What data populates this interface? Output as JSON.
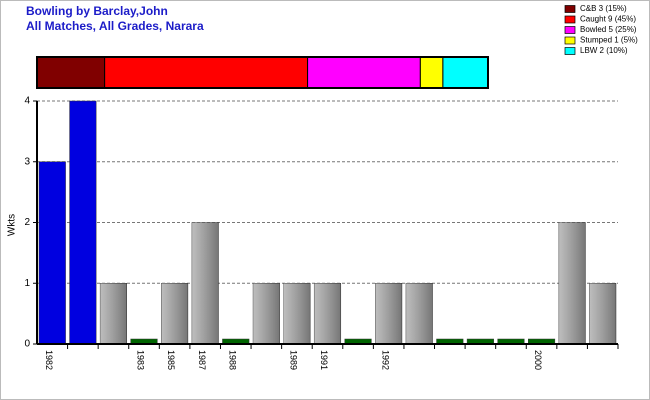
{
  "chart_data": [
    {
      "type": "stacked-hbar",
      "title": "Bowling by Barclay,John",
      "subtitle": "All Matches, All Grades, Narara",
      "series": [
        {
          "name": "C&B 3 (15%)",
          "color": "#800000",
          "values": [
            15
          ]
        },
        {
          "name": "Caught 9 (45%)",
          "color": "#ff0000",
          "values": [
            45
          ]
        },
        {
          "name": "Bowled 5 (25%)",
          "color": "#ff00ff",
          "values": [
            25
          ]
        },
        {
          "name": "Stumped 1 (5%)",
          "color": "#ffff00",
          "values": [
            5
          ]
        },
        {
          "name": "LBW 2 (10%)",
          "color": "#00ffff",
          "values": [
            10
          ]
        }
      ]
    },
    {
      "type": "bar",
      "y_label": "Wkts",
      "categories": [
        "1982",
        null,
        null,
        "1983",
        "1985",
        "1987",
        "1988",
        null,
        "1989",
        "1991",
        null,
        "1992",
        null,
        null,
        null,
        null,
        "2000",
        null,
        null
      ],
      "values": [
        3,
        4,
        1,
        0,
        1,
        2,
        0,
        1,
        1,
        1,
        0,
        1,
        1,
        0,
        0,
        0,
        0,
        2,
        1
      ],
      "colors": [
        "#0000e0",
        "#0000e0",
        "#a8a8a8",
        "#006400",
        "#a8a8a8",
        "#a8a8a8",
        "#006400",
        "#a8a8a8",
        "#a8a8a8",
        "#a8a8a8",
        "#006400",
        "#a8a8a8",
        "#a8a8a8",
        "#006400",
        "#006400",
        "#006400",
        "#006400",
        "#a8a8a8",
        "#a8a8a8"
      ],
      "ylim": [
        0,
        4
      ],
      "yticks": [
        0,
        1,
        2,
        3,
        4
      ],
      "grid": true
    }
  ]
}
